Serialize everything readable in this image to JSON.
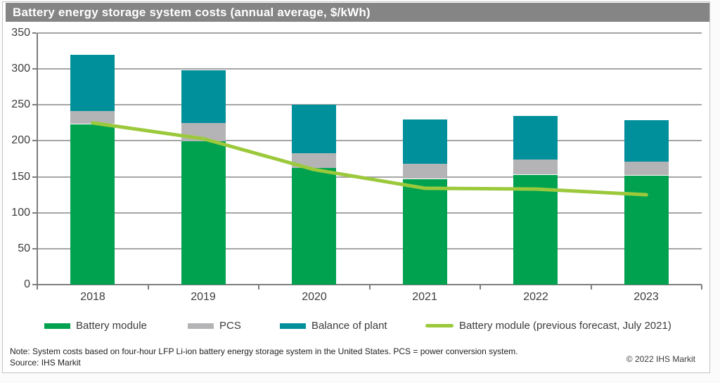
{
  "title": "Battery energy storage system costs (annual average, $/kWh)",
  "chart_data": {
    "type": "bar",
    "stacked": true,
    "title": "Battery energy storage system costs (annual average, $/kWh)",
    "categories": [
      "2018",
      "2019",
      "2020",
      "2021",
      "2022",
      "2023"
    ],
    "series": [
      {
        "name": "Battery module",
        "type": "bar",
        "color": "#00a24f",
        "values": [
          223,
          200,
          162,
          147,
          153,
          152
        ]
      },
      {
        "name": "PCS",
        "type": "bar",
        "color": "#b4b4b6",
        "values": [
          19,
          25,
          21,
          21,
          21,
          19
        ]
      },
      {
        "name": "Balance of plant",
        "type": "bar",
        "color": "#00909c",
        "values": [
          78,
          73,
          67,
          62,
          61,
          58
        ]
      },
      {
        "name": "Battery module (previous forecast, July 2021)",
        "type": "line",
        "color": "#9cc93c",
        "values": [
          225,
          203,
          160,
          134,
          133,
          125
        ]
      }
    ],
    "xlabel": "",
    "ylabel": "",
    "ylim": [
      0,
      350
    ],
    "yticks": [
      0,
      50,
      100,
      150,
      200,
      250,
      300,
      350
    ],
    "grid": "horizontal",
    "legend_position": "bottom"
  },
  "notes": {
    "note": "Note: System costs based on four-hour LFP Li-ion battery energy storage system in the United States. PCS = power conversion system.",
    "source": "Source: IHS Markit",
    "copyright": "© 2022 IHS Markit"
  }
}
